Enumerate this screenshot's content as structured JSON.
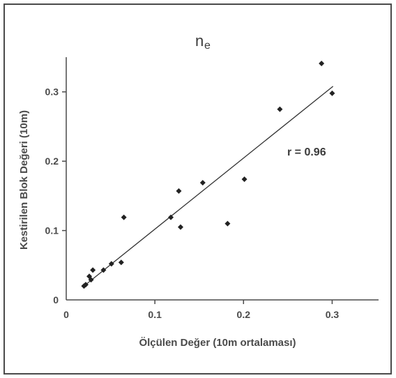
{
  "chart_data": {
    "type": "scatter",
    "title_main": "n",
    "title_sub": "e",
    "xlabel": "Ölçülen  Değer (10m ortalaması)",
    "ylabel": "Kestirilen Blok Değeri (10m)",
    "xlim": [
      0,
      0.35
    ],
    "ylim": [
      0,
      0.35
    ],
    "x_ticks": [
      "0",
      "0.1",
      "0.2",
      "0.3"
    ],
    "x_tick_values": [
      0,
      0.1,
      0.2,
      0.3
    ],
    "y_ticks": [
      "0",
      "0.1",
      "0.2",
      "0.3"
    ],
    "y_tick_values": [
      0,
      0.1,
      0.2,
      0.3
    ],
    "annotation": "r = 0.96",
    "grid": false,
    "points": [
      {
        "x": 0.02,
        "y": 0.02
      },
      {
        "x": 0.022,
        "y": 0.022
      },
      {
        "x": 0.026,
        "y": 0.034
      },
      {
        "x": 0.028,
        "y": 0.029
      },
      {
        "x": 0.03,
        "y": 0.043
      },
      {
        "x": 0.042,
        "y": 0.043
      },
      {
        "x": 0.051,
        "y": 0.052
      },
      {
        "x": 0.062,
        "y": 0.054
      },
      {
        "x": 0.065,
        "y": 0.119
      },
      {
        "x": 0.118,
        "y": 0.119
      },
      {
        "x": 0.127,
        "y": 0.157
      },
      {
        "x": 0.129,
        "y": 0.105
      },
      {
        "x": 0.154,
        "y": 0.169
      },
      {
        "x": 0.182,
        "y": 0.11
      },
      {
        "x": 0.201,
        "y": 0.174
      },
      {
        "x": 0.241,
        "y": 0.275
      },
      {
        "x": 0.288,
        "y": 0.341
      },
      {
        "x": 0.3,
        "y": 0.298
      }
    ],
    "fit_line": {
      "x": [
        0.02,
        0.301
      ],
      "y": [
        0.02,
        0.308
      ]
    },
    "colors": {
      "marker": "#222222",
      "line": "#333333",
      "axis": "#4a4a4a",
      "text": "#3a3a3a"
    }
  }
}
